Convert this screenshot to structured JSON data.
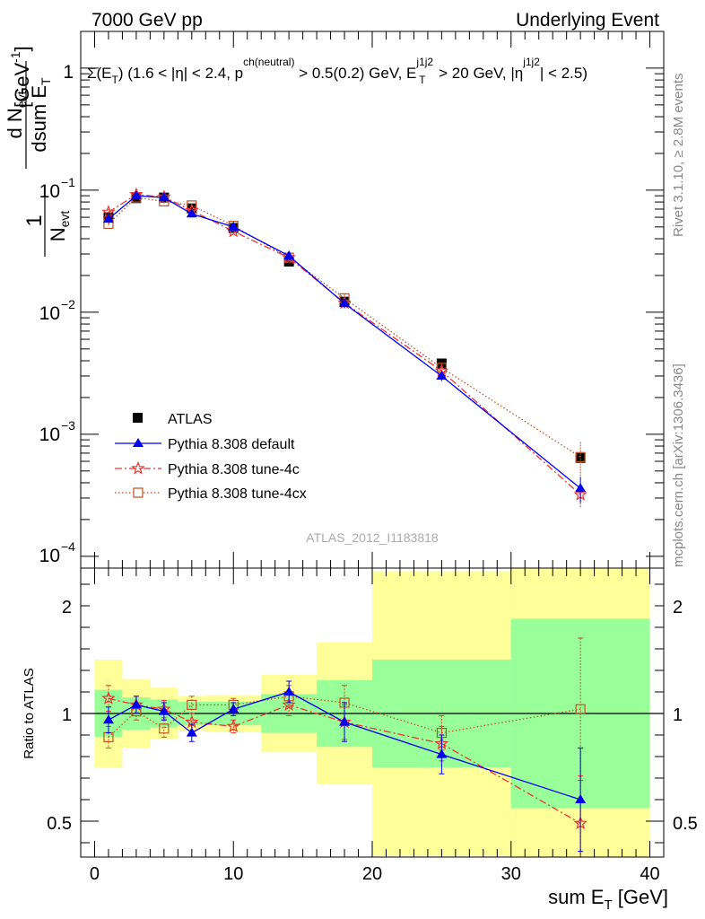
{
  "header": {
    "left": "7000 GeV pp",
    "right": "Underlying Event"
  },
  "side": {
    "rivet": "Rivet 3.1.10, ≥ 2.8M events",
    "mcplots": "mcplots.cern.ch [arXiv:1306.3436]"
  },
  "chart_data": {
    "type": "scatter",
    "title": "Σ(E_T) (1.6 < |η| < 2.4, p^{ch(neutral)} > 0.5(0.2) GeV, E_T^{j1j2} > 20 GeV, |η^{j1j2}| < 2.5)",
    "title_parts": {
      "t1": "Σ(E",
      "t2": "T",
      "t3": ") (1.6 < |η| < 2.4, p",
      "t4": "ch(neutral)",
      "t5": " > 0.5(0.2) GeV, E",
      "t6": "j1j2",
      "t7": "T",
      "t8": " > 20 GeV, |η",
      "t9": "j1j2",
      "t10": "| < 2.5)"
    },
    "watermark": "ATLAS_2012_I1183818",
    "xlabel": "sum E_T [GeV]",
    "xlabel_parts": {
      "main": "sum E",
      "sub": "T",
      "unit": " [GeV]"
    },
    "ylabel": "1/N_evt dN_evt/dsum E_T [GeV^-1]",
    "ylabel_parts": {
      "one": "1",
      "n": "N",
      "evt": "evt",
      "dn": "d N",
      "dsum": "dsum E",
      "t": "T",
      "unit": "[GeV",
      "exp": "-1",
      "close": "]"
    },
    "ratio_ylabel": "Ratio to ATLAS",
    "xlim": [
      -1,
      41
    ],
    "ylim": [
      8e-05,
      2.0
    ],
    "yscale": "log",
    "ratio_ylim": [
      0.35,
      2.3
    ],
    "x_ticks": [
      0,
      10,
      20,
      30,
      40
    ],
    "main_y_ticks": [
      "1",
      "10^{-1}",
      "10^{-2}",
      "10^{-3}",
      "10^{-4}"
    ],
    "ratio_y_ticks": [
      "0.5",
      "1",
      "2"
    ],
    "legend_position": "lower-left",
    "bins": [
      [
        0,
        2
      ],
      [
        2,
        4
      ],
      [
        4,
        6
      ],
      [
        6,
        8
      ],
      [
        8,
        12
      ],
      [
        12,
        16
      ],
      [
        16,
        20
      ],
      [
        20,
        30
      ],
      [
        30,
        40
      ]
    ],
    "x": [
      1,
      3,
      5,
      7,
      10,
      14,
      18,
      25,
      35
    ],
    "ratio_bands": {
      "green_fraction": [
        0.11,
        0.075,
        0.065,
        0.055,
        0.055,
        0.09,
        0.155,
        0.25,
        0.44
      ],
      "yellow_fraction": [
        0.25,
        0.16,
        0.12,
        0.08,
        0.085,
        0.18,
        0.33,
        0.66,
        0.98
      ]
    },
    "series": [
      {
        "name": "ATLAS",
        "color": "#000000",
        "marker": "square",
        "values": [
          0.06,
          0.086,
          0.087,
          0.071,
          0.049,
          0.026,
          0.0122,
          0.0038,
          0.00064
        ],
        "ratio": [
          1,
          1,
          1,
          1,
          1,
          1,
          1,
          1,
          1
        ]
      },
      {
        "name": "Pythia 8.308 default",
        "color": "#0000ee",
        "marker": "triangle",
        "line": "solid",
        "values": [
          0.058,
          0.09,
          0.087,
          0.064,
          0.05,
          0.029,
          0.0118,
          0.003,
          0.00036
        ],
        "ratio": [
          0.97,
          1.04,
          1.01,
          0.91,
          1.02,
          1.1,
          0.96,
          0.81,
          0.6
        ],
        "ratio_err": [
          0.06,
          0.04,
          0.04,
          0.04,
          0.03,
          0.05,
          0.09,
          0.09,
          0.24
        ]
      },
      {
        "name": "Pythia 8.308 tune-4c",
        "color": "#ee3333",
        "marker": "star",
        "line": "dashdot",
        "values": [
          0.066,
          0.092,
          0.088,
          0.068,
          0.046,
          0.028,
          0.0119,
          0.0033,
          0.00032
        ],
        "ratio": [
          1.07,
          1.04,
          1.02,
          0.96,
          0.94,
          1.04,
          0.96,
          0.86,
          0.49
        ],
        "ratio_err": [
          0.06,
          0.04,
          0.04,
          0.04,
          0.03,
          0.05,
          0.08,
          0.08,
          0.22
        ]
      },
      {
        "name": "Pythia 8.308 tune-4cx",
        "color": "#bb5522",
        "marker": "open-square",
        "line": "dotted",
        "values": [
          0.053,
          0.087,
          0.081,
          0.075,
          0.051,
          0.028,
          0.013,
          0.0035,
          0.00065
        ],
        "ratio": [
          0.89,
          1.01,
          0.93,
          1.04,
          1.04,
          1.08,
          1.05,
          0.91,
          1.02
        ],
        "ratio_err": [
          0.05,
          0.04,
          0.04,
          0.04,
          0.03,
          0.05,
          0.08,
          0.08,
          0.33
        ]
      }
    ]
  }
}
